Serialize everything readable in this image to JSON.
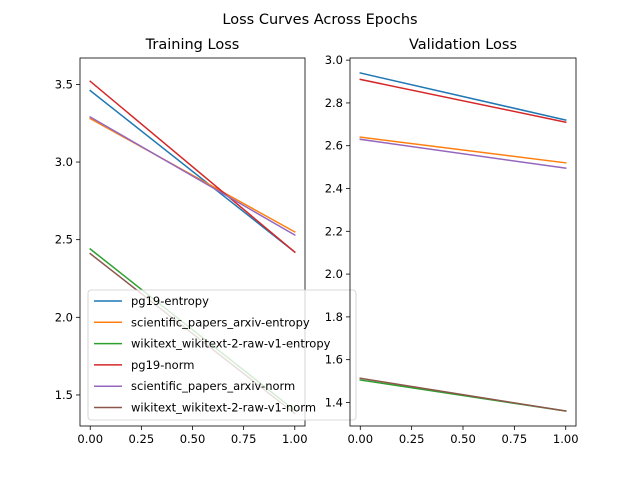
{
  "figure_title": "Loss Curves Across Epochs",
  "chart_data": [
    {
      "type": "line",
      "title": "Training Loss",
      "xlabel": "",
      "ylabel": "",
      "x": [
        0.0,
        1.0
      ],
      "xlim": [
        -0.05,
        1.05
      ],
      "ylim": [
        1.3,
        3.67
      ],
      "xticks": [
        0.0,
        0.25,
        0.5,
        0.75,
        1.0
      ],
      "xtick_labels": [
        "0.00",
        "0.25",
        "0.50",
        "0.75",
        "1.00"
      ],
      "yticks": [
        1.5,
        2.0,
        2.5,
        3.0,
        3.5
      ],
      "ytick_labels": [
        "1.5",
        "2.0",
        "2.5",
        "3.0",
        "3.5"
      ],
      "grid": false,
      "legend": "lower-left",
      "series": [
        {
          "name": "pg19-entropy",
          "color": "#1f77b4",
          "values": [
            3.46,
            2.42
          ]
        },
        {
          "name": "scientific_papers_arxiv-entropy",
          "color": "#ff7f0e",
          "values": [
            3.28,
            2.55
          ]
        },
        {
          "name": "wikitext_wikitext-2-raw-v1-entropy",
          "color": "#2ca02c",
          "values": [
            2.44,
            1.4
          ]
        },
        {
          "name": "pg19-norm",
          "color": "#d62728",
          "values": [
            3.52,
            2.42
          ]
        },
        {
          "name": "scientific_papers_arxiv-norm",
          "color": "#9467bd",
          "values": [
            3.29,
            2.53
          ]
        },
        {
          "name": "wikitext_wikitext-2-raw-v1-norm",
          "color": "#8c564b",
          "values": [
            2.41,
            1.38
          ]
        }
      ]
    },
    {
      "type": "line",
      "title": "Validation Loss",
      "xlabel": "",
      "ylabel": "",
      "x": [
        0.0,
        1.0
      ],
      "xlim": [
        -0.05,
        1.05
      ],
      "ylim": [
        1.29,
        3.01
      ],
      "xticks": [
        0.0,
        0.25,
        0.5,
        0.75,
        1.0
      ],
      "xtick_labels": [
        "0.00",
        "0.25",
        "0.50",
        "0.75",
        "1.00"
      ],
      "yticks": [
        1.4,
        1.6,
        1.8,
        2.0,
        2.2,
        2.4,
        2.6,
        2.8,
        3.0
      ],
      "ytick_labels": [
        "1.4",
        "1.6",
        "1.8",
        "2.0",
        "2.2",
        "2.4",
        "2.6",
        "2.8",
        "3.0"
      ],
      "grid": false,
      "legend": "",
      "series": [
        {
          "name": "pg19-entropy",
          "color": "#1f77b4",
          "values": [
            2.94,
            2.72
          ]
        },
        {
          "name": "scientific_papers_arxiv-entropy",
          "color": "#ff7f0e",
          "values": [
            2.64,
            2.52
          ]
        },
        {
          "name": "wikitext_wikitext-2-raw-v1-entropy",
          "color": "#2ca02c",
          "values": [
            1.505,
            1.36
          ]
        },
        {
          "name": "pg19-norm",
          "color": "#d62728",
          "values": [
            2.91,
            2.71
          ]
        },
        {
          "name": "scientific_papers_arxiv-norm",
          "color": "#9467bd",
          "values": [
            2.63,
            2.495
          ]
        },
        {
          "name": "wikitext_wikitext-2-raw-v1-norm",
          "color": "#8c564b",
          "values": [
            1.513,
            1.36
          ]
        }
      ]
    }
  ]
}
